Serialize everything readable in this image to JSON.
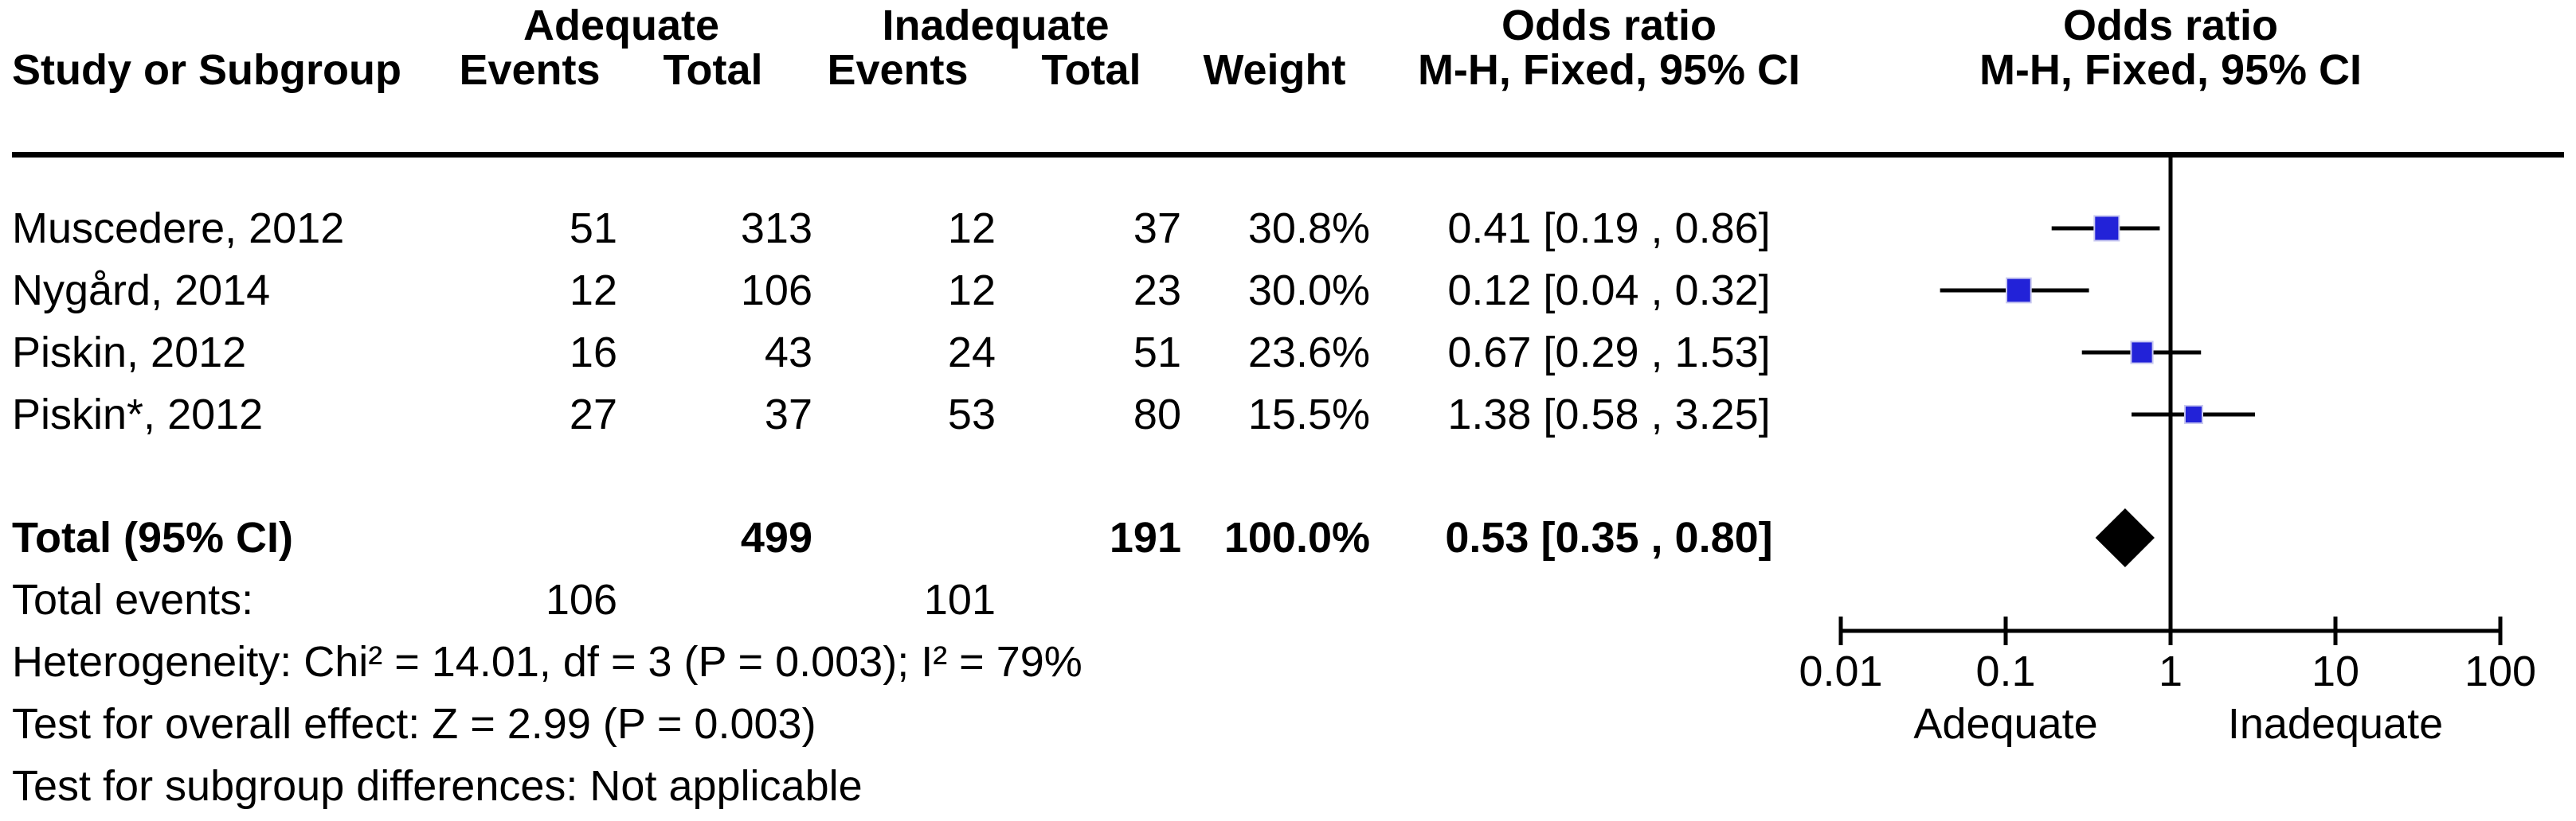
{
  "header": {
    "col_study": "Study or Subgroup",
    "group1": "Adequate",
    "group2": "Inadequate",
    "col_events": "Events",
    "col_total": "Total",
    "col_weight": "Weight",
    "col_or": "Odds ratio",
    "col_method": "M-H, Fixed, 95% CI"
  },
  "footer": {
    "heterogeneity": "Heterogeneity: Chi² = 14.01, df = 3 (P = 0.003); I² = 79%",
    "overall_effect": "Test for overall effect: Z = 2.99 (P = 0.003)",
    "subgroup": "Test for subgroup differences: Not applicable"
  },
  "chart_data": {
    "type": "forest",
    "effect_measure": "Odds ratio",
    "method": "M-H, Fixed, 95% CI",
    "marker_color": "#2222d8",
    "marker_edge": "#c9c9f0",
    "line_color": "#000000",
    "x_axis": {
      "scale": "log",
      "ticks": [
        0.01,
        0.1,
        1,
        10,
        100
      ],
      "tick_labels": [
        "0.01",
        "0.1",
        "1",
        "10",
        "100"
      ],
      "null_value": 1,
      "left_label": "Adequate",
      "right_label": "Inadequate"
    },
    "studies": [
      {
        "name": "Muscedere, 2012",
        "events1": "51",
        "total1": "313",
        "events2": "12",
        "total2": "37",
        "weight": "30.8%",
        "weight_pct": 30.8,
        "or": 0.41,
        "ci_low": 0.19,
        "ci_high": 0.86,
        "or_text": "0.41 [0.19 , 0.86]"
      },
      {
        "name": "Nygård, 2014",
        "events1": "12",
        "total1": "106",
        "events2": "12",
        "total2": "23",
        "weight": "30.0%",
        "weight_pct": 30.0,
        "or": 0.12,
        "ci_low": 0.04,
        "ci_high": 0.32,
        "or_text": "0.12 [0.04 , 0.32]"
      },
      {
        "name": "Piskin, 2012",
        "events1": "16",
        "total1": "43",
        "events2": "24",
        "total2": "51",
        "weight": "23.6%",
        "weight_pct": 23.6,
        "or": 0.67,
        "ci_low": 0.29,
        "ci_high": 1.53,
        "or_text": "0.67 [0.29 , 1.53]"
      },
      {
        "name": "Piskin*, 2012",
        "events1": "27",
        "total1": "37",
        "events2": "53",
        "total2": "80",
        "weight": "15.5%",
        "weight_pct": 15.5,
        "or": 1.38,
        "ci_low": 0.58,
        "ci_high": 3.25,
        "or_text": "1.38 [0.58 , 3.25]"
      }
    ],
    "total": {
      "label": "Total (95% CI)",
      "total1": "499",
      "total2": "191",
      "weight": "100.0%",
      "or": 0.53,
      "ci_low": 0.35,
      "ci_high": 0.8,
      "or_text": "0.53 [0.35 , 0.80]"
    },
    "total_events": {
      "label": "Total events:",
      "events1": "106",
      "events2": "101"
    }
  }
}
